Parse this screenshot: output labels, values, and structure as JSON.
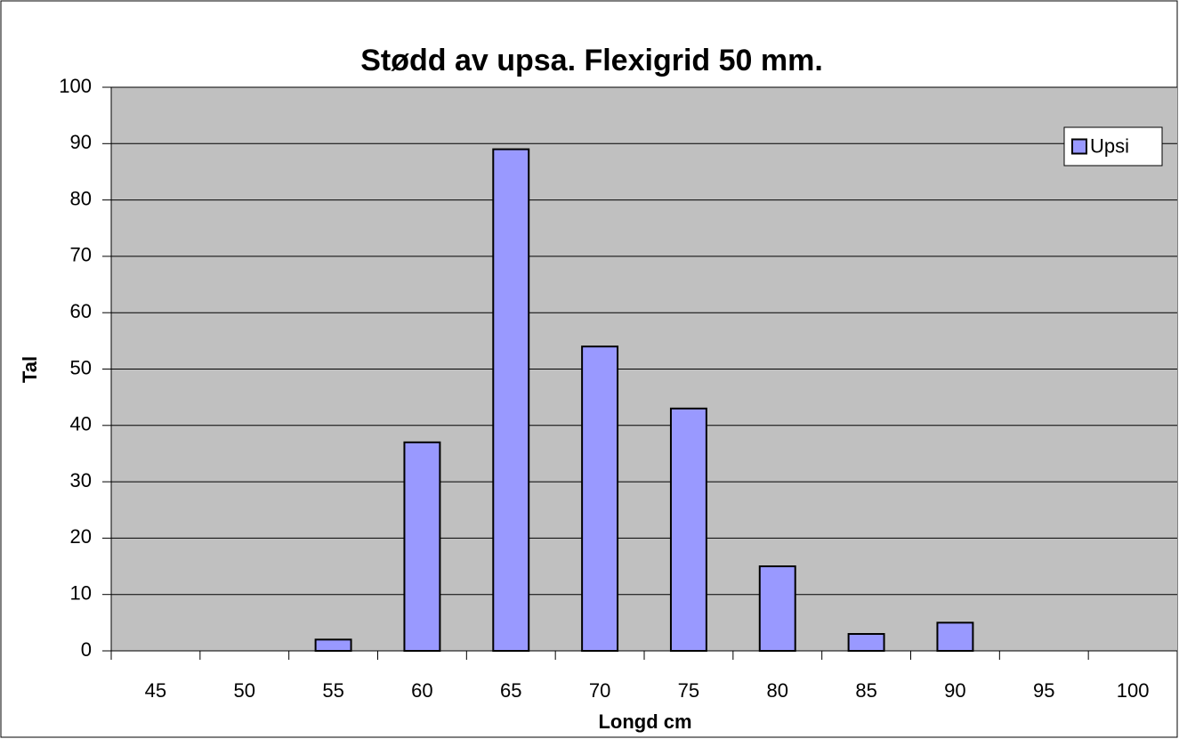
{
  "chart_data": {
    "type": "bar",
    "title": "Stødd av upsa. Flexigrid 50 mm.",
    "x_label": "Longd cm",
    "y_label": "Tal",
    "categories": [
      "45",
      "50",
      "55",
      "60",
      "65",
      "70",
      "75",
      "80",
      "85",
      "90",
      "95",
      "100"
    ],
    "series": [
      {
        "name": "Upsi",
        "color": "#9999ff",
        "values": [
          0,
          0,
          2,
          37,
          89,
          54,
          43,
          15,
          3,
          5,
          0,
          0
        ]
      }
    ],
    "ylim": [
      0,
      100
    ],
    "yticks": [
      0,
      10,
      20,
      30,
      40,
      50,
      60,
      70,
      80,
      90,
      100
    ],
    "grid": true,
    "legend": "upper right"
  }
}
